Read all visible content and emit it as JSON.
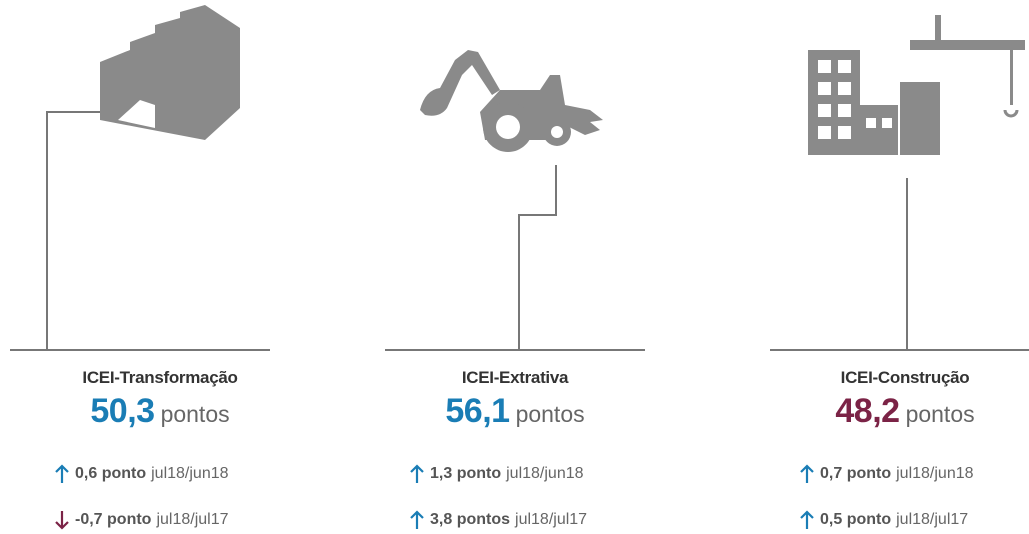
{
  "panels": [
    {
      "title": "ICEI-Transformação",
      "value": "50,3",
      "unit": "pontos",
      "color": "#1a7db5",
      "changes": [
        {
          "direction": "up",
          "amount": "0,6 ponto",
          "period": "jul18/jun18"
        },
        {
          "direction": "down",
          "amount": "-0,7 ponto",
          "period": "jul18/jul17"
        }
      ]
    },
    {
      "title": "ICEI-Extrativa",
      "value": "56,1",
      "unit": "pontos",
      "color": "#1a7db5",
      "changes": [
        {
          "direction": "up",
          "amount": "1,3 ponto",
          "period": "jul18/jun18"
        },
        {
          "direction": "up",
          "amount": "3,8 pontos",
          "period": "jul18/jul17"
        }
      ]
    },
    {
      "title": "ICEI-Construção",
      "value": "48,2",
      "unit": "pontos",
      "color": "#7b2346",
      "changes": [
        {
          "direction": "up",
          "amount": "0,7 ponto",
          "period": "jul18/jun18"
        },
        {
          "direction": "up",
          "amount": "0,5 ponto",
          "period": "jul18/jul17"
        }
      ]
    }
  ]
}
